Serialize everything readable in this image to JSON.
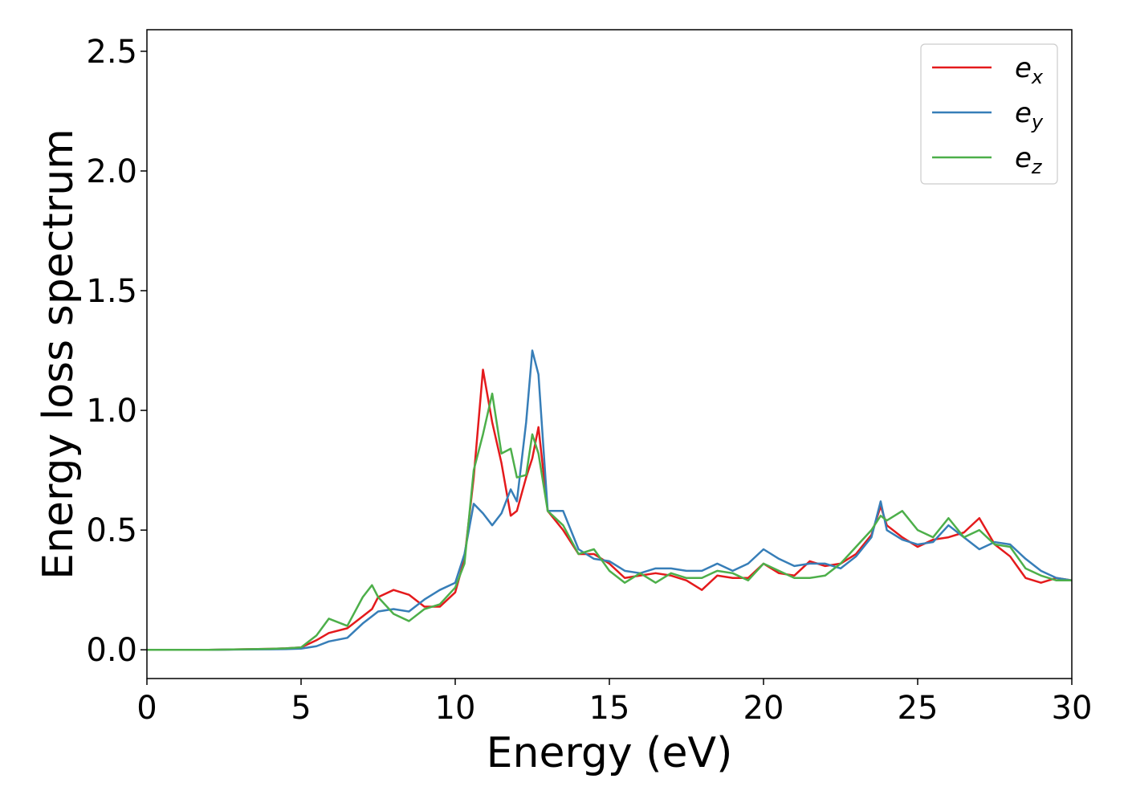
{
  "chart_data": {
    "type": "line",
    "xlabel": "Energy (eV)",
    "ylabel": "Energy loss spectrum",
    "x": [
      0,
      1,
      2,
      3,
      4,
      4.5,
      5,
      5.5,
      5.9,
      6.5,
      7,
      7.3,
      7.5,
      8,
      8.5,
      9,
      9.5,
      10,
      10.3,
      10.6,
      10.9,
      11.2,
      11.5,
      11.8,
      12,
      12.3,
      12.5,
      12.7,
      13,
      13.5,
      14,
      14.5,
      15,
      15.5,
      16,
      16.5,
      17,
      17.5,
      18,
      18.5,
      19,
      19.5,
      20,
      20.5,
      21,
      21.5,
      22,
      22.5,
      23,
      23.5,
      23.8,
      24,
      24.5,
      25,
      25.5,
      26,
      26.5,
      27,
      27.5,
      28,
      28.5,
      29,
      29.5,
      30
    ],
    "series": [
      {
        "name": "e_x",
        "color": "#e41a1c",
        "values": [
          0,
          0,
          0,
          0.002,
          0.004,
          0.006,
          0.01,
          0.04,
          0.07,
          0.09,
          0.14,
          0.17,
          0.22,
          0.25,
          0.23,
          0.18,
          0.18,
          0.24,
          0.38,
          0.72,
          1.17,
          0.95,
          0.78,
          0.56,
          0.58,
          0.72,
          0.8,
          0.93,
          0.58,
          0.5,
          0.4,
          0.4,
          0.36,
          0.3,
          0.31,
          0.32,
          0.31,
          0.29,
          0.25,
          0.31,
          0.3,
          0.3,
          0.36,
          0.32,
          0.31,
          0.37,
          0.35,
          0.36,
          0.4,
          0.48,
          0.6,
          0.52,
          0.47,
          0.43,
          0.46,
          0.47,
          0.49,
          0.55,
          0.44,
          0.39,
          0.3,
          0.28,
          0.3,
          0.29
        ]
      },
      {
        "name": "e_y",
        "color": "#377eb8",
        "values": [
          0,
          0,
          0,
          0.001,
          0.002,
          0.003,
          0.005,
          0.015,
          0.035,
          0.05,
          0.11,
          0.14,
          0.16,
          0.17,
          0.16,
          0.21,
          0.25,
          0.28,
          0.4,
          0.61,
          0.57,
          0.52,
          0.57,
          0.67,
          0.62,
          0.95,
          1.25,
          1.15,
          0.58,
          0.58,
          0.42,
          0.38,
          0.37,
          0.33,
          0.32,
          0.34,
          0.34,
          0.33,
          0.33,
          0.36,
          0.33,
          0.36,
          0.42,
          0.38,
          0.35,
          0.36,
          0.36,
          0.34,
          0.39,
          0.47,
          0.62,
          0.5,
          0.46,
          0.44,
          0.45,
          0.52,
          0.47,
          0.42,
          0.45,
          0.44,
          0.38,
          0.33,
          0.3,
          0.29
        ]
      },
      {
        "name": "e_z",
        "color": "#4daf4a",
        "values": [
          0,
          0,
          0,
          0.002,
          0.004,
          0.006,
          0.01,
          0.06,
          0.13,
          0.1,
          0.22,
          0.27,
          0.22,
          0.15,
          0.12,
          0.17,
          0.19,
          0.26,
          0.36,
          0.75,
          0.9,
          1.07,
          0.82,
          0.84,
          0.72,
          0.73,
          0.9,
          0.82,
          0.58,
          0.52,
          0.4,
          0.42,
          0.33,
          0.28,
          0.32,
          0.28,
          0.32,
          0.3,
          0.3,
          0.33,
          0.32,
          0.29,
          0.36,
          0.33,
          0.3,
          0.3,
          0.31,
          0.36,
          0.43,
          0.5,
          0.56,
          0.54,
          0.58,
          0.5,
          0.47,
          0.55,
          0.47,
          0.5,
          0.44,
          0.43,
          0.34,
          0.31,
          0.29,
          0.29
        ]
      }
    ],
    "xlim": [
      0,
      30
    ],
    "xticks": [
      0,
      5,
      10,
      15,
      20,
      25,
      30
    ],
    "ylim": [
      -0.12,
      2.59
    ],
    "yticks": [
      {
        "value": 0,
        "label": "0.0"
      },
      0.5,
      {
        "value": 1,
        "label": "1.0"
      },
      1.5,
      {
        "value": 2,
        "label": "2.0"
      },
      2.5
    ],
    "grid": false,
    "legend": "upper right"
  }
}
